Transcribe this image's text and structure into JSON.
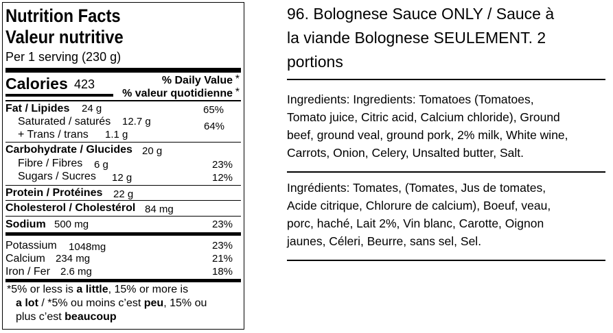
{
  "nutrition": {
    "title_en": "Nutrition Facts",
    "title_fr": "Valeur nutritive",
    "serving": "Per 1 serving (230 g)",
    "calories_label": "Calories",
    "calories_value": "423",
    "dv_label_en": "% Daily Value",
    "dv_star1": "*",
    "dv_label_fr": "% valeur quotidienne",
    "dv_star2": "*",
    "rows": [
      {
        "label": "Fat / Lipides",
        "amount": "24 g",
        "dv": "65%"
      },
      {
        "label": "Saturated / saturés",
        "amount": "12.7 g",
        "dv": "64%"
      },
      {
        "label": "+ Trans / trans",
        "amount": "1.1 g",
        "dv": ""
      },
      {
        "label": "Carbohydrate / Glucides",
        "amount": "20 g",
        "dv": ""
      },
      {
        "label": "Fibre / Fibres",
        "amount": "6 g",
        "dv": "23%"
      },
      {
        "label": "Sugars / Sucres",
        "amount": "12 g",
        "dv": "12%"
      },
      {
        "label": "Protein / Protéines",
        "amount": "22 g",
        "dv": ""
      },
      {
        "label": "Cholesterol / Cholestérol",
        "amount": "84 mg",
        "dv": ""
      },
      {
        "label": "Sodium",
        "amount": "500 mg",
        "dv": "23%"
      },
      {
        "label": "Potassium",
        "amount": "1048mg",
        "dv": "23%"
      },
      {
        "label": "Calcium",
        "amount": "234 mg",
        "dv": "21%"
      },
      {
        "label": "Iron / Fer",
        "amount": "2.6 mg",
        "dv": "18%"
      }
    ],
    "footnote": {
      "star": "*",
      "t1": "5% or less is ",
      "b1": "a little",
      "t2": ", 15% or more is",
      "b2": "a lot",
      "t3": " / ",
      "star2": "*",
      "t4": "5% ou moins c’est ",
      "b3": "peu",
      "t5": ", 15% ou",
      "t6": "plus c’est ",
      "b4": "beaucoup"
    }
  },
  "product": {
    "title_line1": "96. Bolognese Sauce ONLY / Sauce à",
    "title_line2": "la viande Bolognese SEULEMENT. 2",
    "title_line3": "portions",
    "ingredients_en": [
      "Ingredients: Ingredients: Tomatoes (Tomatoes,",
      "Tomato juice, Citric acid, Calcium chloride), Ground",
      "beef, ground veal, ground pork, 2% milk, White wine,",
      "Carrots, Onion, Celery, Unsalted butter, Salt."
    ],
    "ingredients_fr": [
      "Ingrédients: Tomates, (Tomates, Jus de tomates,",
      "Acide citrique, Chlorure de calcium), Boeuf, veau,",
      "porc, haché, Lait 2%, Vin blanc, Carotte, Oignon",
      "jaunes, Céleri, Beurre, sans sel, Sel."
    ]
  }
}
